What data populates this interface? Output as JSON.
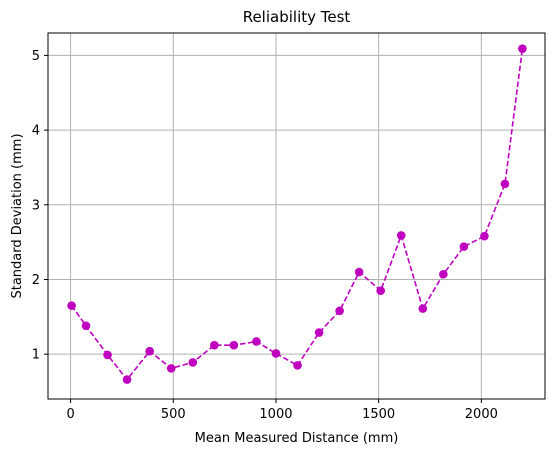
{
  "chart_data": {
    "type": "line",
    "title": "Reliability Test",
    "xlabel": "Mean Measured Distance (mm)",
    "ylabel": "Standard Deviation (mm)",
    "xlim": [
      -110,
      2310
    ],
    "ylim": [
      0.4,
      5.3
    ],
    "xticks": [
      0,
      500,
      1000,
      1500,
      2000
    ],
    "yticks": [
      1,
      2,
      3,
      4,
      5
    ],
    "grid": true,
    "line_style": "dashed",
    "marker": "circle",
    "color": "#bf00bf",
    "series": [
      {
        "x": [
          5,
          75,
          180,
          275,
          385,
          490,
          595,
          700,
          795,
          905,
          1000,
          1105,
          1210,
          1310,
          1405,
          1510,
          1610,
          1715,
          1815,
          1915,
          2015,
          2115,
          2200
        ],
        "y": [
          1.65,
          1.38,
          0.99,
          0.66,
          1.04,
          0.81,
          0.89,
          1.12,
          1.12,
          1.17,
          1.01,
          0.85,
          1.29,
          1.58,
          2.1,
          1.85,
          2.59,
          1.61,
          2.07,
          2.44,
          2.58,
          3.28,
          5.09
        ]
      }
    ]
  }
}
